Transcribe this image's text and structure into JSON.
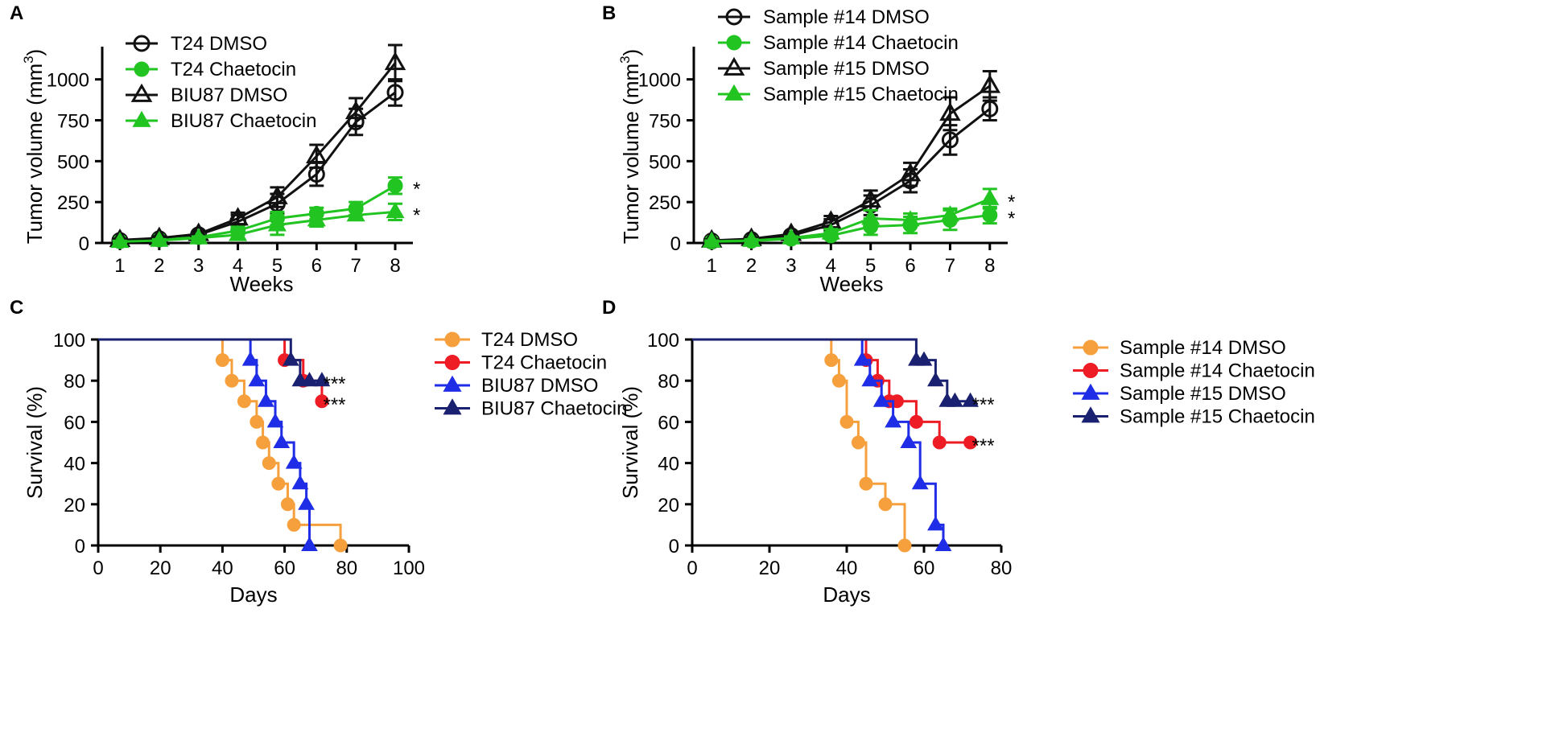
{
  "colors": {
    "black": "#111111",
    "green": "#22c422",
    "orange": "#f5a03c",
    "red": "#ee1c24",
    "blue": "#1f2ee6",
    "navy": "#1a2170"
  },
  "chart_data": [
    {
      "panel": "A",
      "type": "line",
      "xlabel": "Weeks",
      "ylabel": "Tumor volume (mm",
      "ylabel_sup": "3",
      "ylabel_close": ")",
      "xlim": [
        0.55,
        8.45
      ],
      "ylim": [
        0,
        1200
      ],
      "xticks": [
        1,
        2,
        3,
        4,
        5,
        6,
        7,
        8
      ],
      "yticks": [
        0,
        250,
        500,
        750,
        1000
      ],
      "legend_position": "top-left",
      "series": [
        {
          "name": "T24 DMSO",
          "color": "black",
          "marker": "circle-open",
          "x": [
            1,
            2,
            3,
            4,
            5,
            6,
            7,
            8
          ],
          "y": [
            15,
            25,
            50,
            130,
            240,
            420,
            740,
            920
          ],
          "err": [
            8,
            10,
            15,
            40,
            60,
            70,
            80,
            80
          ]
        },
        {
          "name": "T24 Chaetocin",
          "color": "green",
          "marker": "circle",
          "x": [
            1,
            2,
            3,
            4,
            5,
            6,
            7,
            8
          ],
          "y": [
            10,
            20,
            35,
            75,
            150,
            180,
            210,
            350
          ],
          "err": [
            5,
            8,
            12,
            25,
            40,
            35,
            40,
            50
          ]
        },
        {
          "name": "BIU87 DMSO",
          "color": "black",
          "marker": "triangle-open",
          "x": [
            1,
            2,
            3,
            4,
            5,
            6,
            7,
            8
          ],
          "y": [
            18,
            30,
            55,
            150,
            280,
            530,
            800,
            1100
          ],
          "err": [
            8,
            10,
            15,
            35,
            60,
            70,
            85,
            110
          ]
        },
        {
          "name": "BIU87 Chaetocin",
          "color": "green",
          "marker": "triangle",
          "x": [
            1,
            2,
            3,
            4,
            5,
            6,
            7,
            8
          ],
          "y": [
            8,
            15,
            30,
            50,
            110,
            140,
            170,
            190
          ],
          "err": [
            5,
            8,
            10,
            25,
            60,
            40,
            30,
            50
          ]
        }
      ],
      "annotations": [
        {
          "text": "*",
          "x": 8.45,
          "y": 350
        },
        {
          "text": "*",
          "x": 8.45,
          "y": 190
        }
      ]
    },
    {
      "panel": "B",
      "type": "line",
      "xlabel": "Weeks",
      "ylabel": "Tumor volume (mm",
      "ylabel_sup": "3",
      "ylabel_close": ")",
      "xlim": [
        0.55,
        8.45
      ],
      "ylim": [
        0,
        1200
      ],
      "xticks": [
        1,
        2,
        3,
        4,
        5,
        6,
        7,
        8
      ],
      "yticks": [
        0,
        250,
        500,
        750,
        1000
      ],
      "legend_position": "top-left",
      "series": [
        {
          "name": "Sample #14 DMSO",
          "color": "black",
          "marker": "circle-open",
          "x": [
            1,
            2,
            3,
            4,
            5,
            6,
            7,
            8
          ],
          "y": [
            12,
            20,
            45,
            110,
            230,
            380,
            630,
            820
          ],
          "err": [
            6,
            8,
            12,
            35,
            60,
            70,
            90,
            70
          ]
        },
        {
          "name": "Sample #14 Chaetocin",
          "color": "green",
          "marker": "circle",
          "x": [
            1,
            2,
            3,
            4,
            5,
            6,
            7,
            8
          ],
          "y": [
            8,
            12,
            25,
            45,
            100,
            110,
            140,
            170
          ],
          "err": [
            5,
            8,
            10,
            20,
            50,
            50,
            60,
            50
          ]
        },
        {
          "name": "Sample #15 DMSO",
          "color": "black",
          "marker": "triangle-open",
          "x": [
            1,
            2,
            3,
            4,
            5,
            6,
            7,
            8
          ],
          "y": [
            15,
            25,
            55,
            130,
            260,
            420,
            790,
            960
          ],
          "err": [
            6,
            8,
            12,
            35,
            60,
            70,
            100,
            90
          ]
        },
        {
          "name": "Sample #15 Chaetocin",
          "color": "green",
          "marker": "triangle",
          "x": [
            1,
            2,
            3,
            4,
            5,
            6,
            7,
            8
          ],
          "y": [
            10,
            15,
            30,
            60,
            150,
            140,
            170,
            270
          ],
          "err": [
            5,
            8,
            10,
            25,
            50,
            40,
            40,
            60
          ]
        }
      ],
      "annotations": [
        {
          "text": "*",
          "x": 8.45,
          "y": 270
        },
        {
          "text": "*",
          "x": 8.45,
          "y": 170
        }
      ]
    },
    {
      "panel": "C",
      "type": "line",
      "subtype": "survival-step",
      "xlabel": "Days",
      "ylabel": "Survival (%)",
      "xlim": [
        0,
        100
      ],
      "ylim": [
        0,
        100
      ],
      "xticks": [
        0,
        20,
        40,
        60,
        80,
        100
      ],
      "yticks": [
        0,
        20,
        40,
        60,
        80,
        100
      ],
      "legend_position": "right",
      "series": [
        {
          "name": "T24 DMSO",
          "color": "orange",
          "marker": "circle",
          "x": [
            0,
            40,
            43,
            47,
            51,
            53,
            55,
            58,
            61,
            63,
            78
          ],
          "y": [
            100,
            90,
            80,
            70,
            60,
            50,
            40,
            30,
            20,
            10,
            0
          ]
        },
        {
          "name": "T24 Chaetocin",
          "color": "red",
          "marker": "circle",
          "x": [
            0,
            60,
            66,
            72
          ],
          "y": [
            100,
            90,
            80,
            70
          ]
        },
        {
          "name": "BIU87 DMSO",
          "color": "blue",
          "marker": "triangle",
          "x": [
            0,
            49,
            51,
            54,
            57,
            59,
            63,
            65,
            67,
            68
          ],
          "y": [
            100,
            90,
            80,
            70,
            60,
            50,
            40,
            30,
            20,
            0
          ]
        },
        {
          "name": "BIU87 Chaetocin",
          "color": "navy",
          "marker": "triangle",
          "x": [
            0,
            62,
            65,
            68,
            72
          ],
          "y": [
            100,
            90,
            80,
            80,
            80
          ]
        }
      ],
      "annotations": [
        {
          "text": "***",
          "x": 75,
          "y": 80
        },
        {
          "text": "***",
          "x": 75,
          "y": 70
        }
      ]
    },
    {
      "panel": "D",
      "type": "line",
      "subtype": "survival-step",
      "xlabel": "Days",
      "ylabel": "Survival (%)",
      "xlim": [
        0,
        80
      ],
      "ylim": [
        0,
        100
      ],
      "xticks": [
        0,
        20,
        40,
        60,
        80
      ],
      "yticks": [
        0,
        20,
        40,
        60,
        80,
        100
      ],
      "legend_position": "right",
      "series": [
        {
          "name": "Sample #14 DMSO",
          "color": "orange",
          "marker": "circle",
          "x": [
            0,
            36,
            38,
            40,
            43,
            45,
            50,
            55
          ],
          "y": [
            100,
            90,
            80,
            60,
            50,
            30,
            20,
            0
          ]
        },
        {
          "name": "Sample #14 Chaetocin",
          "color": "red",
          "marker": "circle",
          "x": [
            0,
            45,
            48,
            51,
            53,
            58,
            64,
            72
          ],
          "y": [
            100,
            90,
            80,
            70,
            70,
            60,
            50,
            50
          ]
        },
        {
          "name": "Sample #15 DMSO",
          "color": "blue",
          "marker": "triangle",
          "x": [
            0,
            44,
            46,
            49,
            52,
            56,
            59,
            63,
            65
          ],
          "y": [
            100,
            90,
            80,
            70,
            60,
            50,
            30,
            10,
            0
          ]
        },
        {
          "name": "Sample #15 Chaetocin",
          "color": "navy",
          "marker": "triangle",
          "x": [
            0,
            58,
            60,
            63,
            66,
            68,
            72
          ],
          "y": [
            100,
            90,
            90,
            80,
            70,
            70,
            70
          ]
        }
      ],
      "annotations": [
        {
          "text": "***",
          "x": 74.5,
          "y": 70
        },
        {
          "text": "***",
          "x": 74.5,
          "y": 50
        }
      ]
    }
  ]
}
